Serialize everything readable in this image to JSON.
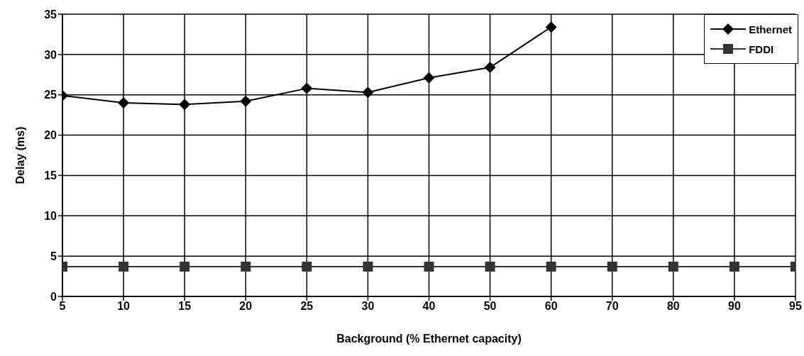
{
  "chart_data": {
    "type": "line",
    "xlabel": "Background (% Ethernet capacity)",
    "ylabel": "Delay (ms)",
    "categories": [
      "5",
      "10",
      "15",
      "20",
      "25",
      "30",
      "40",
      "50",
      "60",
      "70",
      "80",
      "90",
      "95"
    ],
    "series": [
      {
        "name": "Ethernet",
        "color": "#000000",
        "marker": "diamond",
        "values": [
          24.9,
          24.0,
          23.8,
          24.2,
          25.8,
          25.3,
          27.1,
          28.4,
          33.4,
          null,
          null,
          null,
          null
        ]
      },
      {
        "name": "FDDI",
        "color": "#333333",
        "marker": "square",
        "values": [
          3.7,
          3.7,
          3.7,
          3.7,
          3.7,
          3.7,
          3.7,
          3.7,
          3.7,
          3.7,
          3.7,
          3.7,
          3.7
        ]
      }
    ],
    "ylim": [
      0,
      35
    ],
    "yticks": [
      0,
      5,
      10,
      15,
      20,
      25,
      30,
      35
    ],
    "grid": true,
    "legend": "top right"
  }
}
